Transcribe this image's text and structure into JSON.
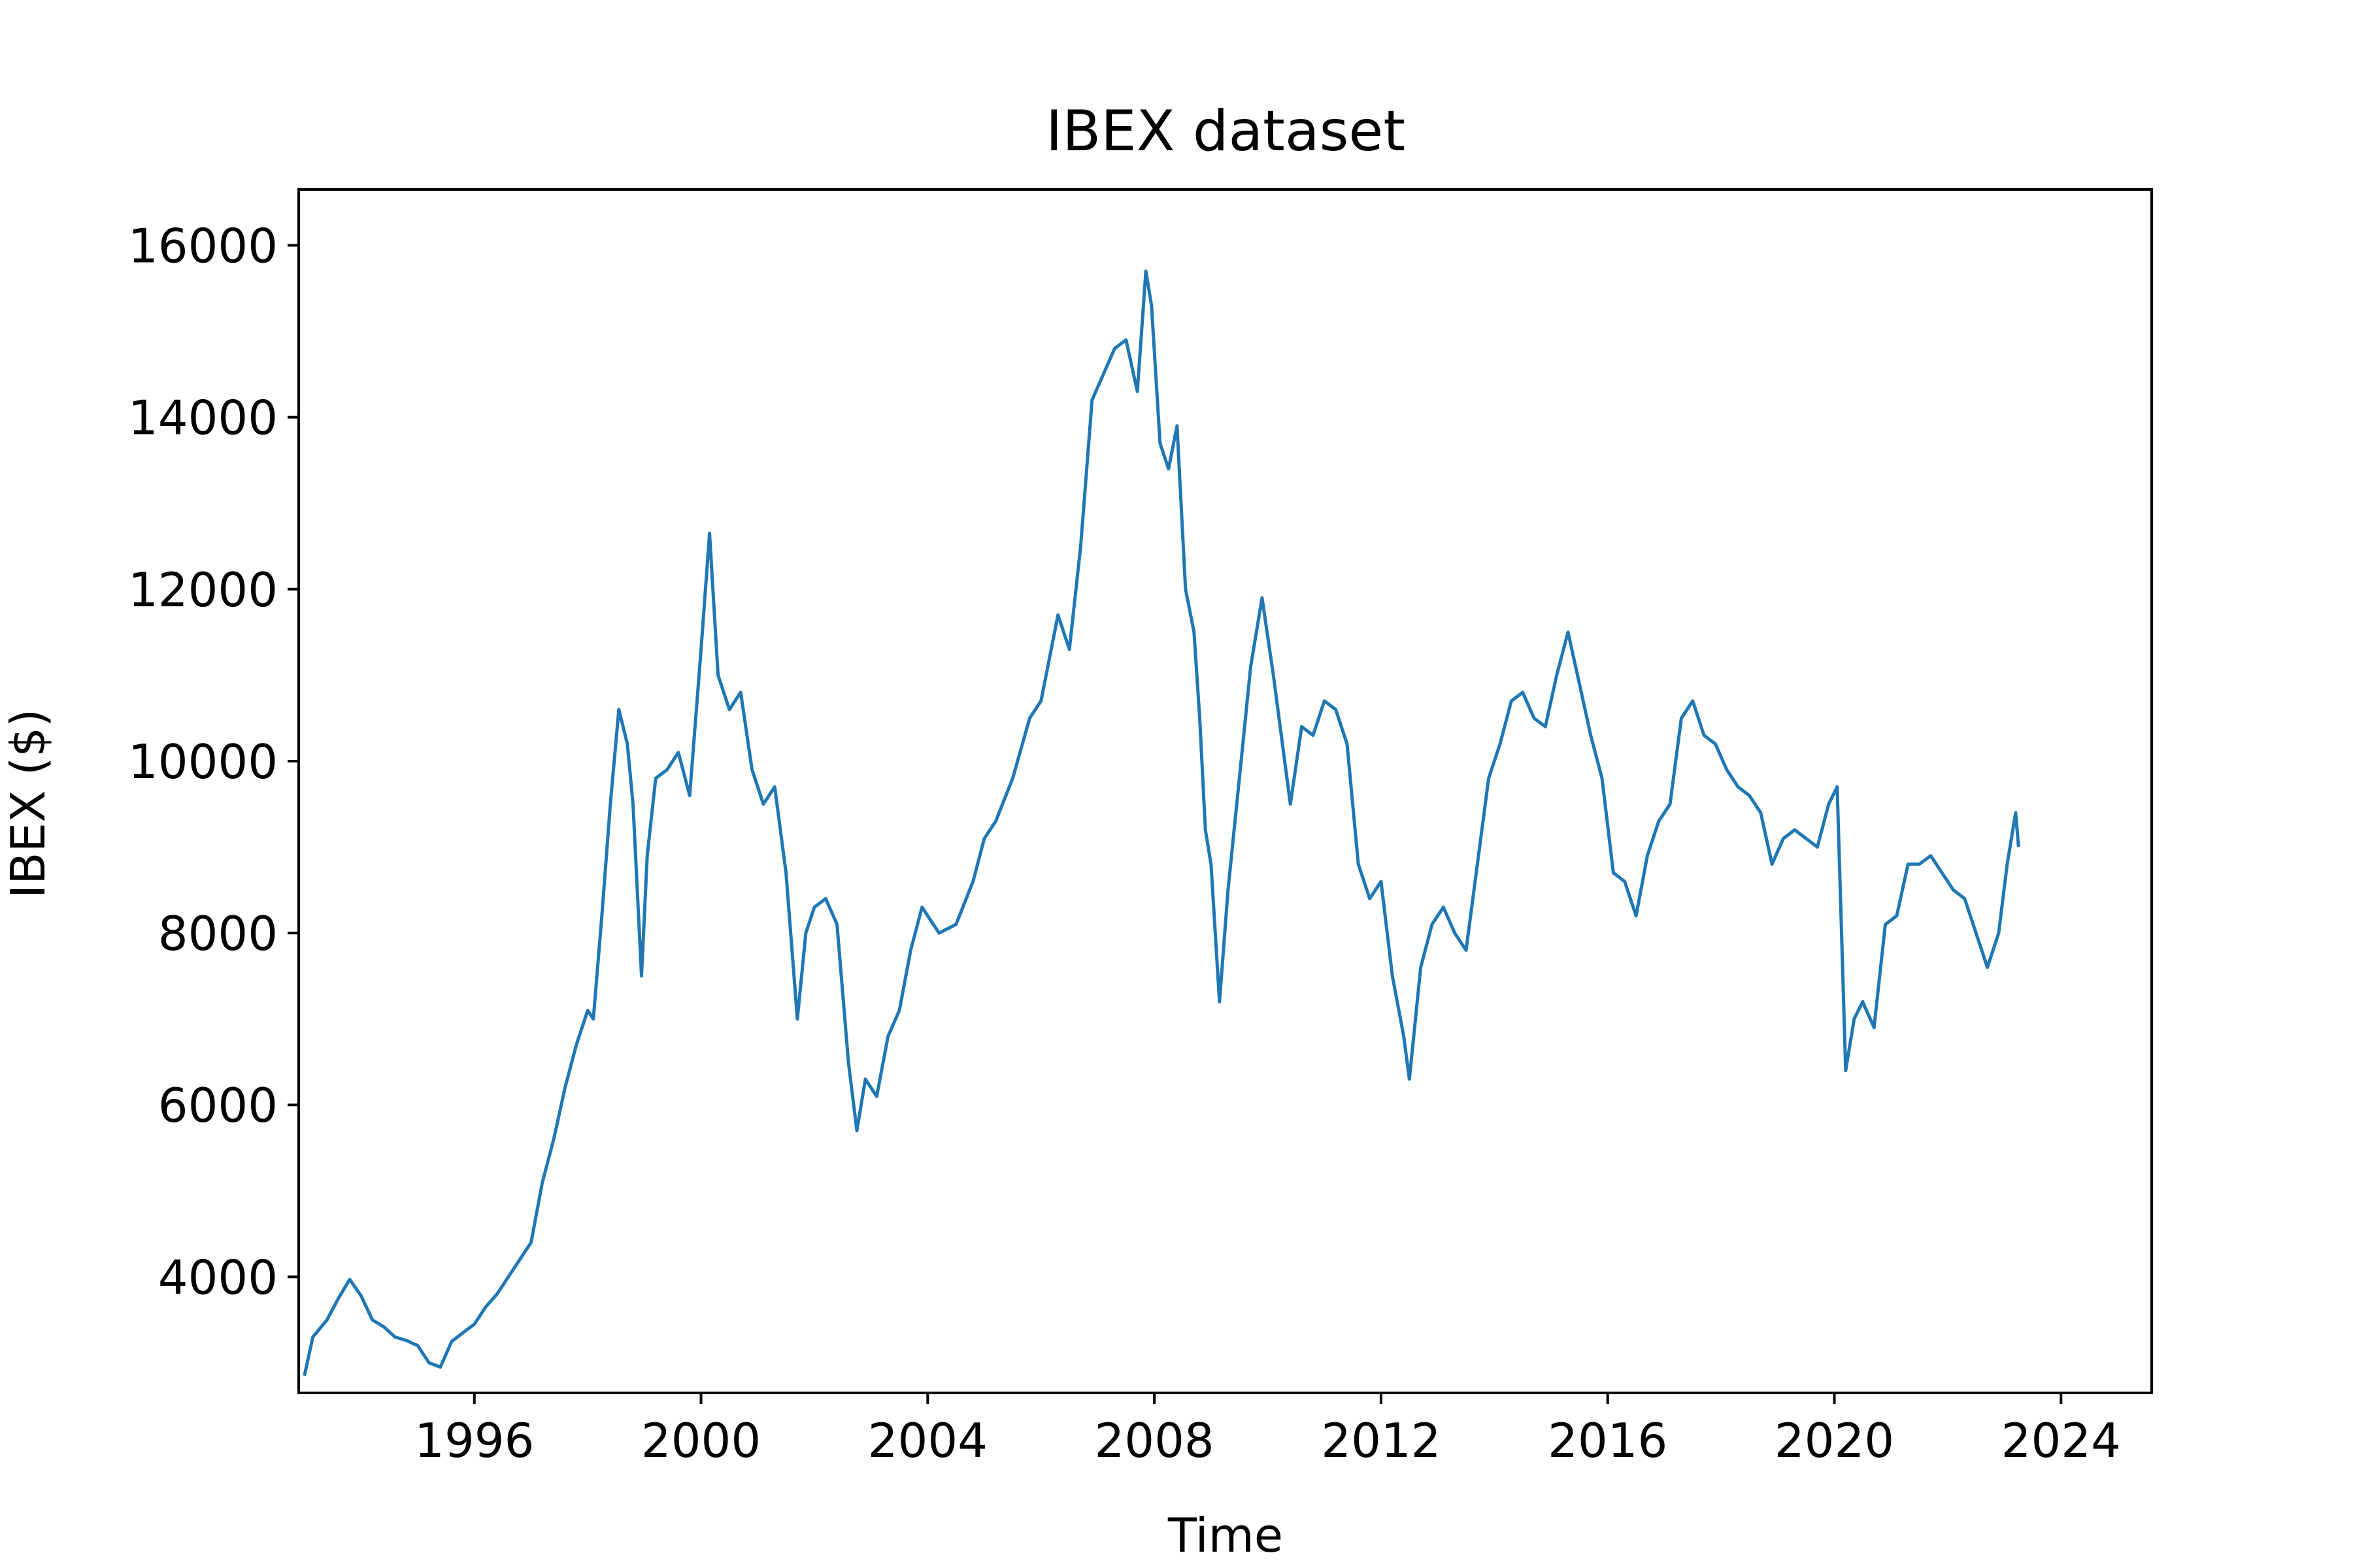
{
  "chart_data": {
    "type": "line",
    "title": "IBEX dataset",
    "xlabel": "Time",
    "ylabel": "IBEX ($)",
    "xlim": [
      1992.9,
      2025.6
    ],
    "ylim": [
      2650,
      16650
    ],
    "x_ticks": [
      1996,
      2000,
      2004,
      2008,
      2012,
      2016,
      2020,
      2024
    ],
    "y_ticks": [
      4000,
      6000,
      8000,
      10000,
      12000,
      14000,
      16000
    ],
    "grid": false,
    "legend": "none",
    "series": [
      {
        "color": "#1f77b4",
        "points": [
          [
            1993.0,
            2850
          ],
          [
            1993.15,
            3300
          ],
          [
            1993.4,
            3500
          ],
          [
            1993.6,
            3750
          ],
          [
            1993.8,
            3970
          ],
          [
            1994.0,
            3780
          ],
          [
            1994.2,
            3500
          ],
          [
            1994.4,
            3420
          ],
          [
            1994.6,
            3300
          ],
          [
            1994.8,
            3260
          ],
          [
            1995.0,
            3200
          ],
          [
            1995.2,
            3000
          ],
          [
            1995.4,
            2950
          ],
          [
            1995.6,
            3250
          ],
          [
            1995.8,
            3350
          ],
          [
            1996.0,
            3450
          ],
          [
            1996.2,
            3650
          ],
          [
            1996.4,
            3800
          ],
          [
            1996.6,
            4000
          ],
          [
            1996.8,
            4200
          ],
          [
            1997.0,
            4400
          ],
          [
            1997.2,
            5100
          ],
          [
            1997.4,
            5600
          ],
          [
            1997.6,
            6200
          ],
          [
            1997.8,
            6700
          ],
          [
            1998.0,
            7100
          ],
          [
            1998.1,
            7000
          ],
          [
            1998.25,
            8200
          ],
          [
            1998.4,
            9500
          ],
          [
            1998.55,
            10600
          ],
          [
            1998.7,
            10200
          ],
          [
            1998.8,
            9500
          ],
          [
            1998.95,
            7500
          ],
          [
            1999.05,
            8900
          ],
          [
            1999.2,
            9800
          ],
          [
            1999.4,
            9900
          ],
          [
            1999.6,
            10100
          ],
          [
            1999.8,
            9600
          ],
          [
            2000.0,
            11300
          ],
          [
            2000.15,
            12650
          ],
          [
            2000.3,
            11000
          ],
          [
            2000.5,
            10600
          ],
          [
            2000.7,
            10800
          ],
          [
            2000.9,
            9900
          ],
          [
            2001.1,
            9500
          ],
          [
            2001.3,
            9700
          ],
          [
            2001.5,
            8700
          ],
          [
            2001.7,
            7000
          ],
          [
            2001.85,
            8000
          ],
          [
            2002.0,
            8300
          ],
          [
            2002.2,
            8400
          ],
          [
            2002.4,
            8100
          ],
          [
            2002.6,
            6500
          ],
          [
            2002.75,
            5700
          ],
          [
            2002.9,
            6300
          ],
          [
            2003.1,
            6100
          ],
          [
            2003.3,
            6800
          ],
          [
            2003.5,
            7100
          ],
          [
            2003.7,
            7800
          ],
          [
            2003.9,
            8300
          ],
          [
            2004.2,
            8000
          ],
          [
            2004.5,
            8100
          ],
          [
            2004.8,
            8600
          ],
          [
            2005.0,
            9100
          ],
          [
            2005.2,
            9300
          ],
          [
            2005.5,
            9800
          ],
          [
            2005.8,
            10500
          ],
          [
            2006.0,
            10700
          ],
          [
            2006.3,
            11700
          ],
          [
            2006.5,
            11300
          ],
          [
            2006.7,
            12500
          ],
          [
            2006.9,
            14200
          ],
          [
            2007.1,
            14500
          ],
          [
            2007.3,
            14800
          ],
          [
            2007.5,
            14900
          ],
          [
            2007.7,
            14300
          ],
          [
            2007.85,
            15700
          ],
          [
            2007.95,
            15300
          ],
          [
            2008.1,
            13700
          ],
          [
            2008.25,
            13400
          ],
          [
            2008.4,
            13900
          ],
          [
            2008.55,
            12000
          ],
          [
            2008.7,
            11500
          ],
          [
            2008.8,
            10500
          ],
          [
            2008.9,
            9200
          ],
          [
            2009.0,
            8800
          ],
          [
            2009.15,
            7200
          ],
          [
            2009.3,
            8500
          ],
          [
            2009.5,
            9800
          ],
          [
            2009.7,
            11100
          ],
          [
            2009.9,
            11900
          ],
          [
            2010.1,
            11000
          ],
          [
            2010.3,
            10000
          ],
          [
            2010.4,
            9500
          ],
          [
            2010.6,
            10400
          ],
          [
            2010.8,
            10300
          ],
          [
            2011.0,
            10700
          ],
          [
            2011.2,
            10600
          ],
          [
            2011.4,
            10200
          ],
          [
            2011.6,
            8800
          ],
          [
            2011.8,
            8400
          ],
          [
            2012.0,
            8600
          ],
          [
            2012.2,
            7500
          ],
          [
            2012.4,
            6800
          ],
          [
            2012.5,
            6300
          ],
          [
            2012.7,
            7600
          ],
          [
            2012.9,
            8100
          ],
          [
            2013.1,
            8300
          ],
          [
            2013.3,
            8000
          ],
          [
            2013.5,
            7800
          ],
          [
            2013.7,
            8800
          ],
          [
            2013.9,
            9800
          ],
          [
            2014.1,
            10200
          ],
          [
            2014.3,
            10700
          ],
          [
            2014.5,
            10800
          ],
          [
            2014.7,
            10500
          ],
          [
            2014.9,
            10400
          ],
          [
            2015.1,
            11000
          ],
          [
            2015.3,
            11500
          ],
          [
            2015.5,
            10900
          ],
          [
            2015.7,
            10300
          ],
          [
            2015.9,
            9800
          ],
          [
            2016.1,
            8700
          ],
          [
            2016.3,
            8600
          ],
          [
            2016.5,
            8200
          ],
          [
            2016.7,
            8900
          ],
          [
            2016.9,
            9300
          ],
          [
            2017.1,
            9500
          ],
          [
            2017.3,
            10500
          ],
          [
            2017.5,
            10700
          ],
          [
            2017.7,
            10300
          ],
          [
            2017.9,
            10200
          ],
          [
            2018.1,
            9900
          ],
          [
            2018.3,
            9700
          ],
          [
            2018.5,
            9600
          ],
          [
            2018.7,
            9400
          ],
          [
            2018.9,
            8800
          ],
          [
            2019.1,
            9100
          ],
          [
            2019.3,
            9200
          ],
          [
            2019.5,
            9100
          ],
          [
            2019.7,
            9000
          ],
          [
            2019.9,
            9500
          ],
          [
            2020.05,
            9700
          ],
          [
            2020.2,
            6400
          ],
          [
            2020.35,
            7000
          ],
          [
            2020.5,
            7200
          ],
          [
            2020.7,
            6900
          ],
          [
            2020.9,
            8100
          ],
          [
            2021.1,
            8200
          ],
          [
            2021.3,
            8800
          ],
          [
            2021.5,
            8800
          ],
          [
            2021.7,
            8900
          ],
          [
            2021.9,
            8700
          ],
          [
            2022.1,
            8500
          ],
          [
            2022.3,
            8400
          ],
          [
            2022.5,
            8000
          ],
          [
            2022.7,
            7600
          ],
          [
            2022.9,
            8000
          ],
          [
            2023.05,
            8800
          ],
          [
            2023.2,
            9400
          ],
          [
            2023.25,
            9000
          ]
        ]
      }
    ]
  }
}
